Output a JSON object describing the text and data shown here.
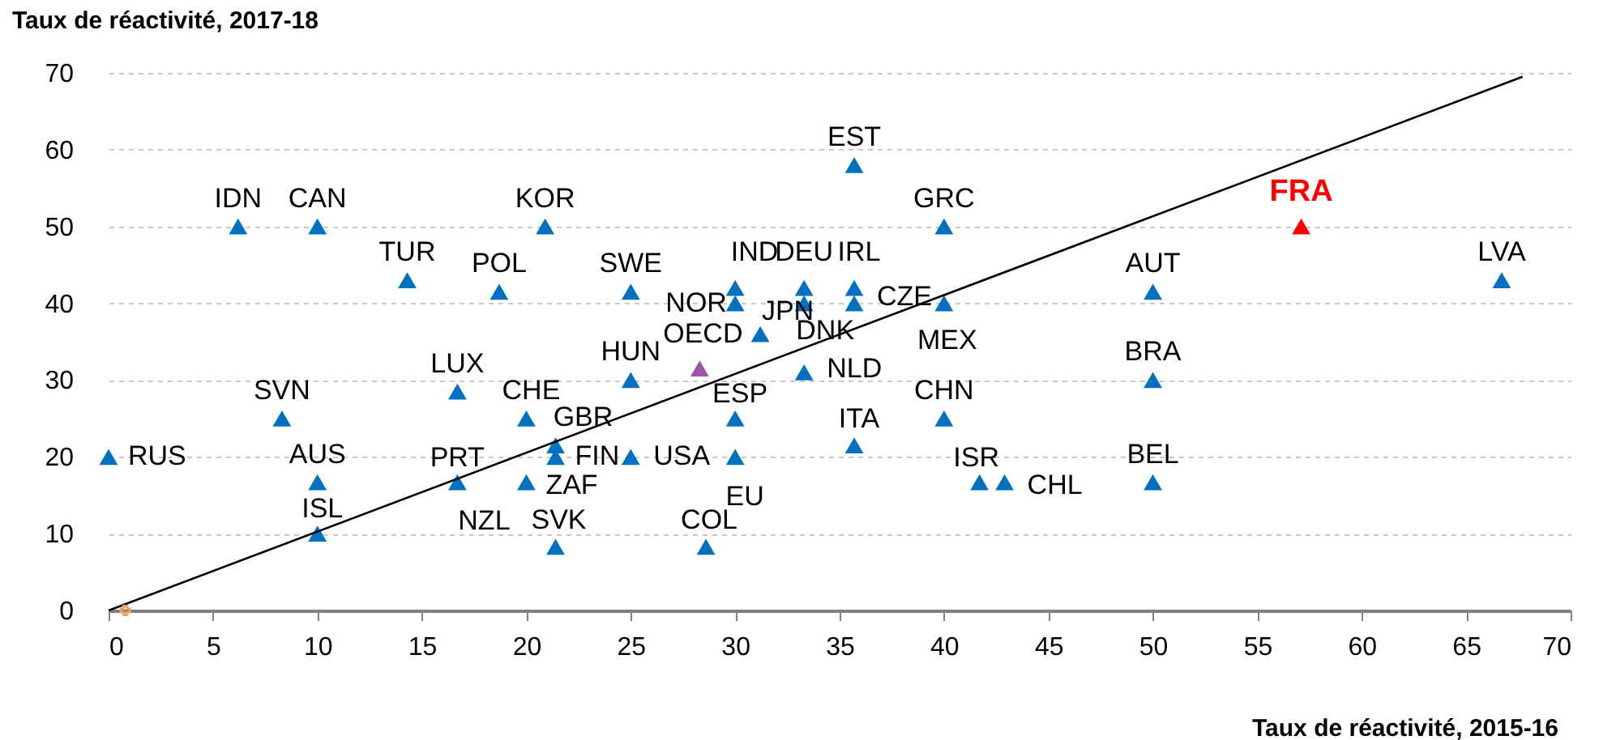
{
  "chart_data": {
    "type": "scatter",
    "xlabel": "Taux de réactivité, 2015-16",
    "ylabel": "Taux de réactivité, 2017-18",
    "xlim": [
      0,
      70
    ],
    "ylim": [
      0,
      70
    ],
    "xticks": [
      0,
      5,
      10,
      15,
      20,
      25,
      30,
      35,
      40,
      45,
      50,
      55,
      60,
      65,
      70
    ],
    "yticks": [
      0,
      10,
      20,
      30,
      40,
      50,
      60,
      70
    ],
    "grid": "y",
    "marker": "triangle",
    "series": [
      {
        "color": "#0070c0",
        "x": [
          0,
          6.2,
          10,
          14.3,
          18.7,
          20.9,
          25,
          30,
          30,
          31.2,
          33.3,
          33.3,
          35.7,
          35.7,
          35.7,
          40,
          40,
          25,
          30,
          33.3,
          16.7,
          20,
          21.4,
          21.4,
          25,
          30,
          20,
          16.7,
          8.3,
          10,
          10,
          21.4,
          28.6,
          35.7,
          40,
          41.7,
          42.9,
          50,
          50,
          50,
          66.7
        ],
        "values": [
          20,
          50,
          50,
          43,
          41.5,
          50,
          41.5,
          42,
          40,
          36,
          42,
          40,
          42,
          40,
          58,
          50,
          40,
          30,
          25,
          31,
          28.5,
          25,
          21.5,
          20,
          20,
          20,
          16.7,
          16.7,
          25,
          16.7,
          10,
          8.3,
          8.3,
          21.5,
          25,
          16.7,
          16.7,
          41.5,
          30,
          16.7,
          43
        ]
      },
      {
        "color": "#9e56a8",
        "x": [
          28.3
        ],
        "values": [
          31.5
        ]
      },
      {
        "name": "FRA",
        "color": "#ff0000",
        "x": [
          57.1
        ],
        "values": [
          50
        ]
      },
      {
        "type": "line",
        "marker": "none",
        "color": "#000000",
        "x": [
          0,
          67.7
        ],
        "values": [
          0,
          69.5
        ]
      },
      {
        "color": "#f4a460",
        "marker": "cross",
        "x": [
          0.8
        ],
        "values": [
          0
        ]
      }
    ],
    "annotations": [
      {
        "text": "RUS",
        "x": 0,
        "y": 20
      },
      {
        "text": "IDN",
        "x": 6.2,
        "y": 50
      },
      {
        "text": "CAN",
        "x": 10,
        "y": 50
      },
      {
        "text": "TUR",
        "x": 14.3,
        "y": 43
      },
      {
        "text": "POL",
        "x": 18.7,
        "y": 41.5
      },
      {
        "text": "KOR",
        "x": 20.9,
        "y": 50
      },
      {
        "text": "SWE",
        "x": 25,
        "y": 41.5
      },
      {
        "text": "IND",
        "x": 30,
        "y": 42
      },
      {
        "text": "NOR",
        "x": 30,
        "y": 40
      },
      {
        "text": "JPN",
        "x": 31.2,
        "y": 36
      },
      {
        "text": "DEU",
        "x": 33.3,
        "y": 42
      },
      {
        "text": "DNK",
        "x": 33.3,
        "y": 40
      },
      {
        "text": "IRL",
        "x": 35.7,
        "y": 42
      },
      {
        "text": "CZE",
        "x": 35.7,
        "y": 40
      },
      {
        "text": "EST",
        "x": 35.7,
        "y": 58
      },
      {
        "text": "GRC",
        "x": 40,
        "y": 50
      },
      {
        "text": "MEX",
        "x": 40,
        "y": 40
      },
      {
        "text": "HUN",
        "x": 25,
        "y": 30
      },
      {
        "text": "OECD",
        "x": 28.3,
        "y": 31.5
      },
      {
        "text": "ESP",
        "x": 30,
        "y": 25
      },
      {
        "text": "NLD",
        "x": 33.3,
        "y": 31
      },
      {
        "text": "CHE",
        "x": 20,
        "y": 25
      },
      {
        "text": "GBR",
        "x": 21.4,
        "y": 21.5
      },
      {
        "text": "FIN",
        "x": 21.4,
        "y": 20
      },
      {
        "text": "USA",
        "x": 25,
        "y": 20
      },
      {
        "text": "EU",
        "x": 30,
        "y": 20
      },
      {
        "text": "ZAF",
        "x": 20,
        "y": 16.7
      },
      {
        "text": "NZL",
        "x": 20,
        "y": 16.7
      },
      {
        "text": "PRT",
        "x": 16.7,
        "y": 16.7
      },
      {
        "text": "LUX",
        "x": 16.7,
        "y": 28.5
      },
      {
        "text": "SVN",
        "x": 8.3,
        "y": 25
      },
      {
        "text": "AUS",
        "x": 10,
        "y": 16.7
      },
      {
        "text": "ISL",
        "x": 10,
        "y": 10
      },
      {
        "text": "SVK",
        "x": 21.4,
        "y": 8.3
      },
      {
        "text": "COL",
        "x": 28.6,
        "y": 8.3
      },
      {
        "text": "ITA",
        "x": 35.7,
        "y": 21.5
      },
      {
        "text": "CHN",
        "x": 40,
        "y": 25
      },
      {
        "text": "ISR",
        "x": 41.7,
        "y": 16.7
      },
      {
        "text": "CHL",
        "x": 42.9,
        "y": 16.7
      },
      {
        "text": "AUT",
        "x": 50,
        "y": 41.5
      },
      {
        "text": "BRA",
        "x": 50,
        "y": 30
      },
      {
        "text": "BEL",
        "x": 50,
        "y": 16.7
      },
      {
        "text": "LVA",
        "x": 66.7,
        "y": 43
      }
    ]
  }
}
